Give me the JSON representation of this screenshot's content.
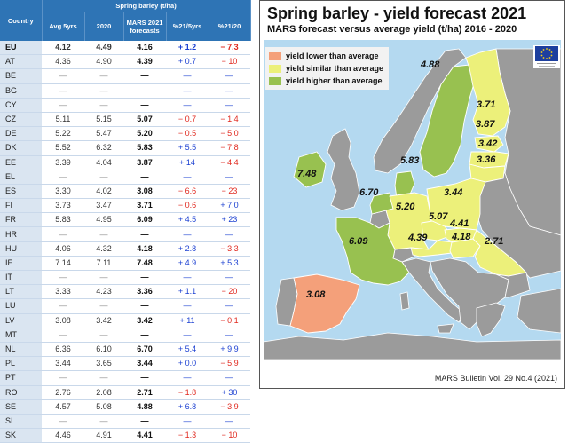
{
  "table": {
    "header_country": "Country",
    "header_group": "Spring barley (t/ha)",
    "headers": [
      "Avg 5yrs",
      "2020",
      "MARS 2021 forecasts",
      "%21/5yrs",
      "%21/20"
    ],
    "rows": [
      {
        "c": "EU",
        "avg": "4.12",
        "y2020": "4.49",
        "f2021": "4.16",
        "p5": "+ 1.2",
        "p20": "− 7.3"
      },
      {
        "c": "AT",
        "avg": "4.36",
        "y2020": "4.90",
        "f2021": "4.39",
        "p5": "+ 0.7",
        "p20": "− 10"
      },
      {
        "c": "BE",
        "avg": "—",
        "y2020": "—",
        "f2021": "—",
        "p5": "—",
        "p20": "—"
      },
      {
        "c": "BG",
        "avg": "—",
        "y2020": "—",
        "f2021": "—",
        "p5": "—",
        "p20": "—"
      },
      {
        "c": "CY",
        "avg": "—",
        "y2020": "—",
        "f2021": "—",
        "p5": "—",
        "p20": "—"
      },
      {
        "c": "CZ",
        "avg": "5.11",
        "y2020": "5.15",
        "f2021": "5.07",
        "p5": "− 0.7",
        "p20": "− 1.4"
      },
      {
        "c": "DE",
        "avg": "5.22",
        "y2020": "5.47",
        "f2021": "5.20",
        "p5": "− 0.5",
        "p20": "− 5.0"
      },
      {
        "c": "DK",
        "avg": "5.52",
        "y2020": "6.32",
        "f2021": "5.83",
        "p5": "+ 5.5",
        "p20": "− 7.8"
      },
      {
        "c": "EE",
        "avg": "3.39",
        "y2020": "4.04",
        "f2021": "3.87",
        "p5": "+ 14",
        "p20": "− 4.4"
      },
      {
        "c": "EL",
        "avg": "—",
        "y2020": "—",
        "f2021": "—",
        "p5": "—",
        "p20": "—"
      },
      {
        "c": "ES",
        "avg": "3.30",
        "y2020": "4.02",
        "f2021": "3.08",
        "p5": "− 6.6",
        "p20": "− 23"
      },
      {
        "c": "FI",
        "avg": "3.73",
        "y2020": "3.47",
        "f2021": "3.71",
        "p5": "− 0.6",
        "p20": "+ 7.0"
      },
      {
        "c": "FR",
        "avg": "5.83",
        "y2020": "4.95",
        "f2021": "6.09",
        "p5": "+ 4.5",
        "p20": "+ 23"
      },
      {
        "c": "HR",
        "avg": "—",
        "y2020": "—",
        "f2021": "—",
        "p5": "—",
        "p20": "—"
      },
      {
        "c": "HU",
        "avg": "4.06",
        "y2020": "4.32",
        "f2021": "4.18",
        "p5": "+ 2.8",
        "p20": "− 3.3"
      },
      {
        "c": "IE",
        "avg": "7.14",
        "y2020": "7.11",
        "f2021": "7.48",
        "p5": "+ 4.9",
        "p20": "+ 5.3"
      },
      {
        "c": "IT",
        "avg": "—",
        "y2020": "—",
        "f2021": "—",
        "p5": "—",
        "p20": "—"
      },
      {
        "c": "LT",
        "avg": "3.33",
        "y2020": "4.23",
        "f2021": "3.36",
        "p5": "+ 1.1",
        "p20": "− 20"
      },
      {
        "c": "LU",
        "avg": "—",
        "y2020": "—",
        "f2021": "—",
        "p5": "—",
        "p20": "—"
      },
      {
        "c": "LV",
        "avg": "3.08",
        "y2020": "3.42",
        "f2021": "3.42",
        "p5": "+ 11",
        "p20": "− 0.1"
      },
      {
        "c": "MT",
        "avg": "—",
        "y2020": "—",
        "f2021": "—",
        "p5": "—",
        "p20": "—"
      },
      {
        "c": "NL",
        "avg": "6.36",
        "y2020": "6.10",
        "f2021": "6.70",
        "p5": "+ 5.4",
        "p20": "+ 9.9"
      },
      {
        "c": "PL",
        "avg": "3.44",
        "y2020": "3.65",
        "f2021": "3.44",
        "p5": "+ 0.0",
        "p20": "− 5.9"
      },
      {
        "c": "PT",
        "avg": "—",
        "y2020": "—",
        "f2021": "—",
        "p5": "—",
        "p20": "—"
      },
      {
        "c": "RO",
        "avg": "2.76",
        "y2020": "2.08",
        "f2021": "2.71",
        "p5": "− 1.8",
        "p20": "+ 30"
      },
      {
        "c": "SE",
        "avg": "4.57",
        "y2020": "5.08",
        "f2021": "4.88",
        "p5": "+ 6.8",
        "p20": "− 3.9"
      },
      {
        "c": "SI",
        "avg": "—",
        "y2020": "—",
        "f2021": "—",
        "p5": "—",
        "p20": "—"
      },
      {
        "c": "SK",
        "avg": "4.46",
        "y2020": "4.91",
        "f2021": "4.41",
        "p5": "− 1.3",
        "p20": "− 10"
      }
    ]
  },
  "map": {
    "title": "Spring barley - yield forecast 2021",
    "subtitle": "MARS forecast versus average yield (t/ha) 2016 - 2020",
    "legend": [
      {
        "label": "yield lower than average",
        "color": "#f4a07a"
      },
      {
        "label": "yield similar than average",
        "color": "#ecf07a"
      },
      {
        "label": "yield higher than average",
        "color": "#98c150"
      }
    ],
    "colors": {
      "sea": "#b4d9f0",
      "nodata": "#9b9b9b",
      "lower": "#f4a07a",
      "similar": "#ecf07a",
      "higher": "#98c150"
    },
    "countries": [
      {
        "code": "SE",
        "class": "higher",
        "value": "4.88"
      },
      {
        "code": "FI",
        "class": "similar",
        "value": "3.71"
      },
      {
        "code": "EE",
        "class": "similar",
        "value": "3.87"
      },
      {
        "code": "LV",
        "class": "similar",
        "value": "3.42"
      },
      {
        "code": "LT",
        "class": "similar",
        "value": "3.36"
      },
      {
        "code": "DK",
        "class": "higher",
        "value": "5.83"
      },
      {
        "code": "IE",
        "class": "higher",
        "value": "7.48"
      },
      {
        "code": "NL",
        "class": "higher",
        "value": "6.70"
      },
      {
        "code": "DE",
        "class": "similar",
        "value": "5.20"
      },
      {
        "code": "PL",
        "class": "similar",
        "value": "3.44"
      },
      {
        "code": "CZ",
        "class": "similar",
        "value": "5.07"
      },
      {
        "code": "SK",
        "class": "similar",
        "value": "4.41"
      },
      {
        "code": "AT",
        "class": "similar",
        "value": "4.39"
      },
      {
        "code": "HU",
        "class": "similar",
        "value": "4.18"
      },
      {
        "code": "RO",
        "class": "similar",
        "value": "2.71"
      },
      {
        "code": "FR",
        "class": "higher",
        "value": "6.09"
      },
      {
        "code": "ES",
        "class": "lower",
        "value": "3.08"
      }
    ],
    "source": "MARS Bulletin Vol. 29 No.4 (2021)",
    "flag_icon": "eu-flag-icon"
  }
}
